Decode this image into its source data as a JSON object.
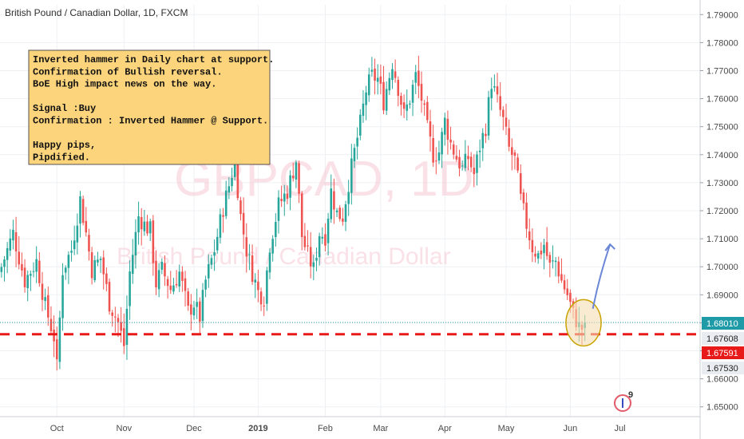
{
  "chart_data": {
    "type": "candlestick",
    "title": "British Pound / Canadian Dollar, 1D, FXCM",
    "watermark": {
      "symbol": "GBPCAD, 1D",
      "name": "British Pound / Canadian Dollar"
    },
    "y_axis": {
      "ticks": [
        "1.79000",
        "1.78000",
        "1.77000",
        "1.76000",
        "1.75000",
        "1.74000",
        "1.73000",
        "1.72000",
        "1.71000",
        "1.70000",
        "1.69000",
        "1.68000",
        "1.67000",
        "1.66000",
        "1.65000"
      ],
      "tick_values": [
        1.79,
        1.78,
        1.77,
        1.76,
        1.75,
        1.74,
        1.73,
        1.72,
        1.71,
        1.7,
        1.69,
        1.68,
        1.67,
        1.66,
        1.65
      ],
      "range": [
        1.6465,
        1.7935
      ]
    },
    "x_axis": {
      "labels": [
        "Oct",
        "Nov",
        "Dec",
        "2019",
        "Feb",
        "Mar",
        "Apr",
        "May",
        "Jun",
        "Jul"
      ],
      "label_index": [
        19,
        42,
        66,
        88,
        111,
        130,
        152,
        173,
        195,
        212
      ],
      "total_bars": 240
    },
    "price_labels": [
      {
        "text": "1.68010",
        "value": 1.6801,
        "style": "current",
        "bg": "#1f9ba8",
        "fg": "#ffffff"
      },
      {
        "text": "1.67608",
        "value": 1.67608,
        "style": "plain",
        "bg": "#e9ecf1",
        "fg": "#222222"
      },
      {
        "text": "1.67591",
        "value": 1.67591,
        "style": "alert",
        "bg": "#e81919",
        "fg": "#ffffff"
      },
      {
        "text": "1.67530",
        "value": 1.6753,
        "style": "plain",
        "bg": "#e9ecf1",
        "fg": "#222222"
      }
    ],
    "support_level": 1.67591,
    "annotation": {
      "lines": [
        "Inverted hammer in Daily chart at support.",
        "Confirmation of Bullish reversal.",
        "BoE High impact news on the way.",
        "",
        "Signal :Buy",
        "Confirmation : Inverted Hammer @ Support.",
        "",
        "Happy pips,",
        "Pipdified."
      ]
    },
    "events_badge": "9",
    "colors": {
      "up": "#26a69a",
      "down": "#ef5350",
      "support_line": "#e81919",
      "current_line": "#1f9ba8",
      "arrow": "#6b86d6",
      "note_bg": "#fcd47c",
      "circle_fill": "#f5deb3"
    },
    "anchors": [
      [
        0,
        1.7
      ],
      [
        4,
        1.712
      ],
      [
        8,
        1.695
      ],
      [
        12,
        1.702
      ],
      [
        15,
        1.686
      ],
      [
        18,
        1.675
      ],
      [
        19,
        1.664
      ],
      [
        21,
        1.699
      ],
      [
        24,
        1.706
      ],
      [
        27,
        1.724
      ],
      [
        29,
        1.712
      ],
      [
        31,
        1.699
      ],
      [
        34,
        1.703
      ],
      [
        37,
        1.687
      ],
      [
        40,
        1.68
      ],
      [
        42,
        1.672
      ],
      [
        44,
        1.698
      ],
      [
        47,
        1.718
      ],
      [
        49,
        1.715
      ],
      [
        51,
        1.713
      ],
      [
        53,
        1.694
      ],
      [
        55,
        1.699
      ],
      [
        58,
        1.692
      ],
      [
        61,
        1.698
      ],
      [
        64,
        1.684
      ],
      [
        66,
        1.687
      ],
      [
        68,
        1.682
      ],
      [
        70,
        1.695
      ],
      [
        73,
        1.706
      ],
      [
        76,
        1.721
      ],
      [
        78,
        1.729
      ],
      [
        80,
        1.738
      ],
      [
        82,
        1.718
      ],
      [
        84,
        1.706
      ],
      [
        86,
        1.698
      ],
      [
        88,
        1.691
      ],
      [
        90,
        1.689
      ],
      [
        92,
        1.708
      ],
      [
        95,
        1.722
      ],
      [
        98,
        1.727
      ],
      [
        101,
        1.738
      ],
      [
        103,
        1.711
      ],
      [
        105,
        1.704
      ],
      [
        107,
        1.699
      ],
      [
        109,
        1.712
      ],
      [
        111,
        1.711
      ],
      [
        113,
        1.727
      ],
      [
        115,
        1.719
      ],
      [
        117,
        1.718
      ],
      [
        119,
        1.73
      ],
      [
        121,
        1.741
      ],
      [
        123,
        1.751
      ],
      [
        125,
        1.763
      ],
      [
        127,
        1.768
      ],
      [
        129,
        1.767
      ],
      [
        131,
        1.759
      ],
      [
        134,
        1.773
      ],
      [
        136,
        1.764
      ],
      [
        138,
        1.754
      ],
      [
        140,
        1.76
      ],
      [
        142,
        1.768
      ],
      [
        144,
        1.76
      ],
      [
        146,
        1.749
      ],
      [
        148,
        1.74
      ],
      [
        150,
        1.741
      ],
      [
        152,
        1.752
      ],
      [
        154,
        1.744
      ],
      [
        156,
        1.739
      ],
      [
        158,
        1.735
      ],
      [
        160,
        1.739
      ],
      [
        162,
        1.733
      ],
      [
        164,
        1.743
      ],
      [
        166,
        1.75
      ],
      [
        168,
        1.766
      ],
      [
        170,
        1.759
      ],
      [
        172,
        1.752
      ],
      [
        174,
        1.742
      ],
      [
        176,
        1.738
      ],
      [
        178,
        1.724
      ],
      [
        180,
        1.715
      ],
      [
        182,
        1.707
      ],
      [
        184,
        1.704
      ],
      [
        186,
        1.708
      ],
      [
        188,
        1.7
      ],
      [
        190,
        1.702
      ],
      [
        192,
        1.695
      ],
      [
        194,
        1.69
      ],
      [
        196,
        1.683
      ],
      [
        197,
        1.681
      ],
      [
        198,
        1.6785
      ],
      [
        199,
        1.678
      ],
      [
        200,
        1.6801
      ]
    ],
    "arrow": {
      "from": [
        200,
        1.685
      ],
      "to": [
        207,
        1.708
      ]
    },
    "circle_center": [
      199,
      1.68
    ]
  }
}
